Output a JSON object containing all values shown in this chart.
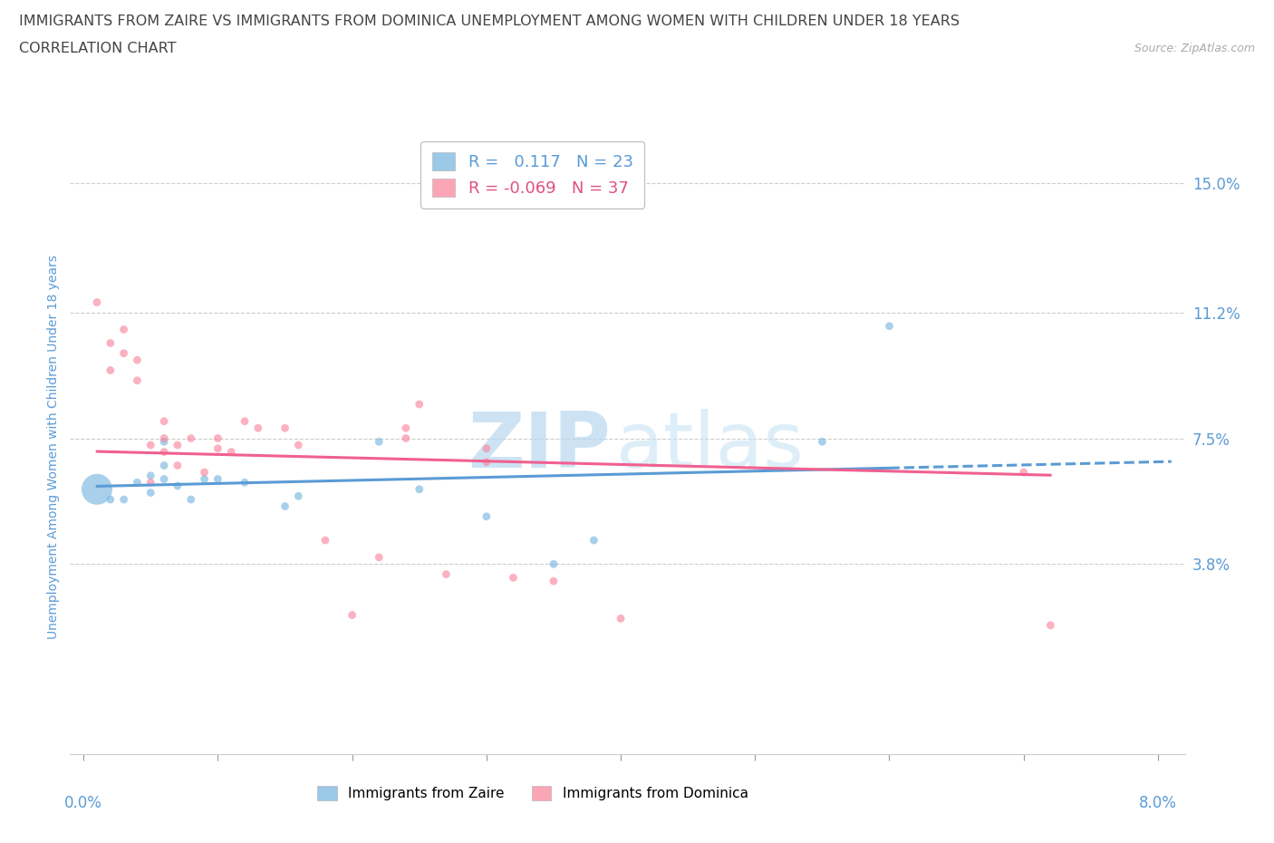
{
  "title_line1": "IMMIGRANTS FROM ZAIRE VS IMMIGRANTS FROM DOMINICA UNEMPLOYMENT AMONG WOMEN WITH CHILDREN UNDER 18 YEARS",
  "title_line2": "CORRELATION CHART",
  "source": "Source: ZipAtlas.com",
  "ylabel": "Unemployment Among Women with Children Under 18 years",
  "xlim": [
    -0.001,
    0.082
  ],
  "ylim": [
    -0.018,
    0.163
  ],
  "yticks": [
    0.038,
    0.075,
    0.112,
    0.15
  ],
  "ytick_labels": [
    "3.8%",
    "7.5%",
    "11.2%",
    "15.0%"
  ],
  "xtick_vals": [
    0.0,
    0.01,
    0.02,
    0.03,
    0.04,
    0.05,
    0.06,
    0.07,
    0.08
  ],
  "xtick_show": [
    0.0,
    0.08
  ],
  "xtick_show_labels": [
    "0.0%",
    "8.0%"
  ],
  "watermark_zip": "ZIP",
  "watermark_atlas": "atlas",
  "zaire_color": "#7ab8e0",
  "dominica_color": "#f9889e",
  "zaire_line_color": "#5b9bd5",
  "dominica_line_color": "#f06090",
  "zaire_R": 0.117,
  "zaire_N": 23,
  "dominica_R": -0.069,
  "dominica_N": 37,
  "zaire_x": [
    0.001,
    0.002,
    0.003,
    0.004,
    0.005,
    0.005,
    0.006,
    0.006,
    0.006,
    0.007,
    0.008,
    0.009,
    0.01,
    0.012,
    0.015,
    0.016,
    0.022,
    0.025,
    0.03,
    0.035,
    0.038,
    0.055,
    0.06
  ],
  "zaire_y": [
    0.06,
    0.057,
    0.057,
    0.062,
    0.059,
    0.064,
    0.063,
    0.067,
    0.074,
    0.061,
    0.057,
    0.063,
    0.063,
    0.062,
    0.055,
    0.058,
    0.074,
    0.06,
    0.052,
    0.038,
    0.045,
    0.074,
    0.108
  ],
  "zaire_sizes": [
    600,
    40,
    40,
    40,
    40,
    40,
    40,
    40,
    40,
    40,
    40,
    40,
    40,
    40,
    40,
    40,
    40,
    40,
    40,
    40,
    40,
    40,
    40
  ],
  "dominica_x": [
    0.001,
    0.002,
    0.002,
    0.003,
    0.003,
    0.004,
    0.004,
    0.005,
    0.005,
    0.006,
    0.006,
    0.006,
    0.007,
    0.007,
    0.008,
    0.009,
    0.01,
    0.01,
    0.011,
    0.012,
    0.013,
    0.015,
    0.016,
    0.018,
    0.02,
    0.022,
    0.024,
    0.024,
    0.025,
    0.027,
    0.03,
    0.03,
    0.032,
    0.035,
    0.04,
    0.07,
    0.072
  ],
  "dominica_y": [
    0.115,
    0.095,
    0.103,
    0.1,
    0.107,
    0.092,
    0.098,
    0.062,
    0.073,
    0.071,
    0.075,
    0.08,
    0.067,
    0.073,
    0.075,
    0.065,
    0.072,
    0.075,
    0.071,
    0.08,
    0.078,
    0.078,
    0.073,
    0.045,
    0.023,
    0.04,
    0.075,
    0.078,
    0.085,
    0.035,
    0.068,
    0.072,
    0.034,
    0.033,
    0.022,
    0.065,
    0.02
  ],
  "dominica_sizes": [
    40,
    40,
    40,
    40,
    40,
    40,
    40,
    40,
    40,
    40,
    40,
    40,
    40,
    40,
    40,
    40,
    40,
    40,
    40,
    40,
    40,
    40,
    40,
    40,
    40,
    40,
    40,
    40,
    40,
    40,
    40,
    40,
    40,
    40,
    40,
    40,
    40
  ],
  "bg_color": "#ffffff",
  "grid_color": "#cccccc",
  "title_color": "#444444",
  "label_color": "#5b9bd5",
  "source_color": "#aaaaaa",
  "legend_text_color_zaire": "#5b9bd5",
  "legend_text_color_dominica": "#e05080"
}
